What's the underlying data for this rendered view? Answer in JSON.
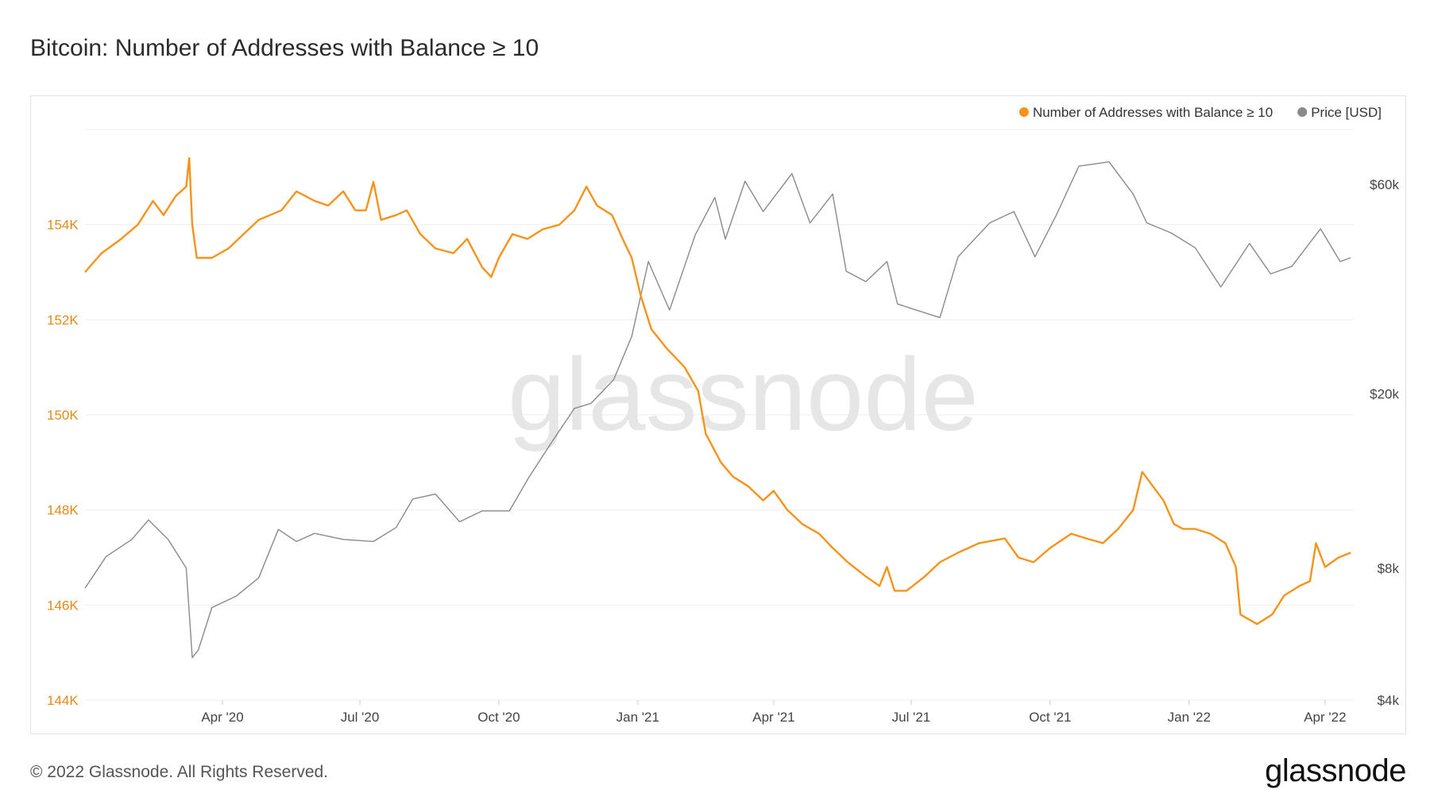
{
  "page": {
    "title": "Bitcoin: Number of Addresses with Balance ≥ 10",
    "footer": "© 2022 Glassnode. All Rights Reserved.",
    "brand": "glassnode",
    "watermark": "glassnode"
  },
  "colors": {
    "addresses": "#f7931a",
    "price": "#8a8a8a",
    "grid": "#eeeeee",
    "left_axis": "#e58a17"
  },
  "chart_data": {
    "type": "line",
    "title": "Bitcoin: Number of Addresses with Balance ≥ 10",
    "x_range": [
      "2020-01-01",
      "2022-04-20"
    ],
    "x_ticks": [
      {
        "label": "Apr '20",
        "date": "2020-04-01"
      },
      {
        "label": "Jul '20",
        "date": "2020-07-01"
      },
      {
        "label": "Oct '20",
        "date": "2020-10-01"
      },
      {
        "label": "Jan '21",
        "date": "2021-01-01"
      },
      {
        "label": "Apr '21",
        "date": "2021-04-01"
      },
      {
        "label": "Jul '21",
        "date": "2021-07-01"
      },
      {
        "label": "Oct '21",
        "date": "2021-10-01"
      },
      {
        "label": "Jan '22",
        "date": "2022-01-01"
      },
      {
        "label": "Apr '22",
        "date": "2022-04-01"
      }
    ],
    "y_left": {
      "label": "Number of Addresses with Balance ≥ 10",
      "scale": "linear",
      "range": [
        144000,
        156000
      ],
      "ticks": [
        {
          "label": "144K",
          "value": 144000
        },
        {
          "label": "146K",
          "value": 146000
        },
        {
          "label": "148K",
          "value": 148000
        },
        {
          "label": "150K",
          "value": 150000
        },
        {
          "label": "152K",
          "value": 152000
        },
        {
          "label": "154K",
          "value": 154000
        }
      ]
    },
    "y_right": {
      "label": "Price [USD]",
      "scale": "log",
      "range": [
        4000,
        80000
      ],
      "ticks": [
        {
          "label": "$4k",
          "value": 4000
        },
        {
          "label": "$8k",
          "value": 8000
        },
        {
          "label": "$20k",
          "value": 20000
        },
        {
          "label": "$60k",
          "value": 60000
        }
      ]
    },
    "legend": {
      "position": "top-right"
    },
    "series": [
      {
        "name": "Number of Addresses with Balance ≥ 10",
        "axis": "left",
        "color": "#f7931a",
        "points": [
          [
            "2020-01-01",
            153000
          ],
          [
            "2020-01-12",
            153400
          ],
          [
            "2020-01-25",
            153700
          ],
          [
            "2020-02-05",
            154000
          ],
          [
            "2020-02-15",
            154500
          ],
          [
            "2020-02-22",
            154200
          ],
          [
            "2020-03-01",
            154600
          ],
          [
            "2020-03-08",
            154800
          ],
          [
            "2020-03-10",
            155400
          ],
          [
            "2020-03-12",
            154000
          ],
          [
            "2020-03-15",
            153300
          ],
          [
            "2020-03-25",
            153300
          ],
          [
            "2020-04-05",
            153500
          ],
          [
            "2020-04-15",
            153800
          ],
          [
            "2020-04-25",
            154100
          ],
          [
            "2020-05-10",
            154300
          ],
          [
            "2020-05-20",
            154700
          ],
          [
            "2020-06-01",
            154500
          ],
          [
            "2020-06-10",
            154400
          ],
          [
            "2020-06-20",
            154700
          ],
          [
            "2020-06-28",
            154300
          ],
          [
            "2020-07-05",
            154300
          ],
          [
            "2020-07-10",
            154900
          ],
          [
            "2020-07-15",
            154100
          ],
          [
            "2020-07-25",
            154200
          ],
          [
            "2020-08-01",
            154300
          ],
          [
            "2020-08-10",
            153800
          ],
          [
            "2020-08-20",
            153500
          ],
          [
            "2020-09-01",
            153400
          ],
          [
            "2020-09-10",
            153700
          ],
          [
            "2020-09-20",
            153100
          ],
          [
            "2020-09-26",
            152900
          ],
          [
            "2020-10-01",
            153300
          ],
          [
            "2020-10-10",
            153800
          ],
          [
            "2020-10-20",
            153700
          ],
          [
            "2020-10-30",
            153900
          ],
          [
            "2020-11-10",
            154000
          ],
          [
            "2020-11-20",
            154300
          ],
          [
            "2020-11-28",
            154800
          ],
          [
            "2020-12-05",
            154400
          ],
          [
            "2020-12-15",
            154200
          ],
          [
            "2020-12-22",
            153700
          ],
          [
            "2020-12-28",
            153300
          ],
          [
            "2021-01-03",
            152500
          ],
          [
            "2021-01-10",
            151800
          ],
          [
            "2021-01-20",
            151400
          ],
          [
            "2021-02-01",
            151000
          ],
          [
            "2021-02-10",
            150500
          ],
          [
            "2021-02-15",
            149600
          ],
          [
            "2021-02-25",
            149000
          ],
          [
            "2021-03-05",
            148700
          ],
          [
            "2021-03-15",
            148500
          ],
          [
            "2021-03-25",
            148200
          ],
          [
            "2021-04-01",
            148400
          ],
          [
            "2021-04-10",
            148000
          ],
          [
            "2021-04-20",
            147700
          ],
          [
            "2021-05-01",
            147500
          ],
          [
            "2021-05-10",
            147200
          ],
          [
            "2021-05-20",
            146900
          ],
          [
            "2021-06-01",
            146600
          ],
          [
            "2021-06-10",
            146400
          ],
          [
            "2021-06-15",
            146800
          ],
          [
            "2021-06-20",
            146300
          ],
          [
            "2021-06-28",
            146300
          ],
          [
            "2021-07-10",
            146600
          ],
          [
            "2021-07-20",
            146900
          ],
          [
            "2021-08-01",
            147100
          ],
          [
            "2021-08-15",
            147300
          ],
          [
            "2021-09-01",
            147400
          ],
          [
            "2021-09-10",
            147000
          ],
          [
            "2021-09-20",
            146900
          ],
          [
            "2021-10-01",
            147200
          ],
          [
            "2021-10-15",
            147500
          ],
          [
            "2021-10-25",
            147400
          ],
          [
            "2021-11-05",
            147300
          ],
          [
            "2021-11-15",
            147600
          ],
          [
            "2021-11-25",
            148000
          ],
          [
            "2021-12-01",
            148800
          ],
          [
            "2021-12-08",
            148500
          ],
          [
            "2021-12-15",
            148200
          ],
          [
            "2021-12-22",
            147700
          ],
          [
            "2021-12-28",
            147600
          ],
          [
            "2022-01-05",
            147600
          ],
          [
            "2022-01-15",
            147500
          ],
          [
            "2022-01-25",
            147300
          ],
          [
            "2022-02-01",
            146800
          ],
          [
            "2022-02-04",
            145800
          ],
          [
            "2022-02-15",
            145600
          ],
          [
            "2022-02-25",
            145800
          ],
          [
            "2022-03-05",
            146200
          ],
          [
            "2022-03-15",
            146400
          ],
          [
            "2022-03-22",
            146500
          ],
          [
            "2022-03-26",
            147300
          ],
          [
            "2022-04-01",
            146800
          ],
          [
            "2022-04-10",
            147000
          ],
          [
            "2022-04-18",
            147100
          ]
        ]
      },
      {
        "name": "Price [USD]",
        "axis": "right",
        "color": "#8a8a8a",
        "points": [
          [
            "2020-01-01",
            7200
          ],
          [
            "2020-01-15",
            8500
          ],
          [
            "2020-02-01",
            9300
          ],
          [
            "2020-02-12",
            10300
          ],
          [
            "2020-02-25",
            9300
          ],
          [
            "2020-03-08",
            8000
          ],
          [
            "2020-03-12",
            5000
          ],
          [
            "2020-03-16",
            5200
          ],
          [
            "2020-03-25",
            6500
          ],
          [
            "2020-04-10",
            6900
          ],
          [
            "2020-04-25",
            7600
          ],
          [
            "2020-05-08",
            9800
          ],
          [
            "2020-05-20",
            9200
          ],
          [
            "2020-06-01",
            9600
          ],
          [
            "2020-06-20",
            9300
          ],
          [
            "2020-07-10",
            9200
          ],
          [
            "2020-07-25",
            9900
          ],
          [
            "2020-08-05",
            11500
          ],
          [
            "2020-08-20",
            11800
          ],
          [
            "2020-09-05",
            10200
          ],
          [
            "2020-09-20",
            10800
          ],
          [
            "2020-10-08",
            10800
          ],
          [
            "2020-10-21",
            12900
          ],
          [
            "2020-11-05",
            15500
          ],
          [
            "2020-11-20",
            18500
          ],
          [
            "2020-12-01",
            19000
          ],
          [
            "2020-12-16",
            21500
          ],
          [
            "2020-12-28",
            27000
          ],
          [
            "2021-01-08",
            40000
          ],
          [
            "2021-01-22",
            31000
          ],
          [
            "2021-02-08",
            46000
          ],
          [
            "2021-02-21",
            56000
          ],
          [
            "2021-02-28",
            45000
          ],
          [
            "2021-03-13",
            61000
          ],
          [
            "2021-03-25",
            52000
          ],
          [
            "2021-04-13",
            63500
          ],
          [
            "2021-04-25",
            49000
          ],
          [
            "2021-05-10",
            57000
          ],
          [
            "2021-05-19",
            38000
          ],
          [
            "2021-06-01",
            36000
          ],
          [
            "2021-06-15",
            40000
          ],
          [
            "2021-06-22",
            32000
          ],
          [
            "2021-07-20",
            29800
          ],
          [
            "2021-08-01",
            41000
          ],
          [
            "2021-08-22",
            49000
          ],
          [
            "2021-09-07",
            52000
          ],
          [
            "2021-09-21",
            41000
          ],
          [
            "2021-10-05",
            51000
          ],
          [
            "2021-10-20",
            66000
          ],
          [
            "2021-11-09",
            67500
          ],
          [
            "2021-11-25",
            57000
          ],
          [
            "2021-12-04",
            49000
          ],
          [
            "2021-12-20",
            46500
          ],
          [
            "2022-01-05",
            43000
          ],
          [
            "2022-01-22",
            35000
          ],
          [
            "2022-02-10",
            44000
          ],
          [
            "2022-02-24",
            37500
          ],
          [
            "2022-03-10",
            39000
          ],
          [
            "2022-03-29",
            47500
          ],
          [
            "2022-04-11",
            40000
          ],
          [
            "2022-04-18",
            40800
          ]
        ]
      }
    ]
  }
}
